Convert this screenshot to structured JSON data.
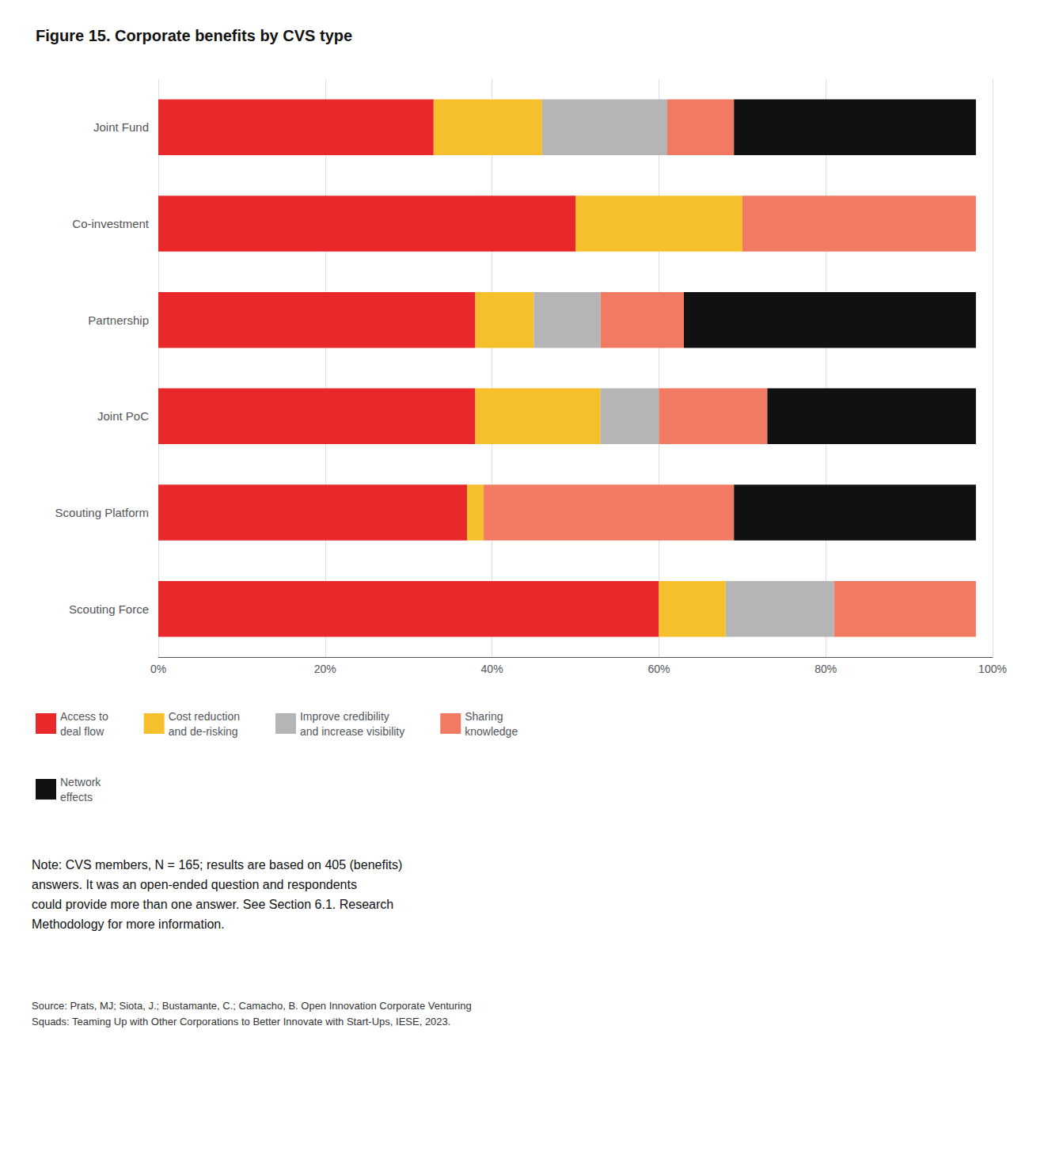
{
  "chart_data": {
    "type": "bar",
    "orientation": "horizontal",
    "stacked": true,
    "title": "Figure 15. Corporate benefits by CVS type",
    "categories": [
      "Joint Fund",
      "Co-investment",
      "Partnership",
      "Joint PoC",
      "Scouting Platform",
      "Scouting Force"
    ],
    "series": [
      {
        "name": "Access to\ndeal flow",
        "color": "#E8282A",
        "values": [
          33,
          50,
          38,
          38,
          37,
          60
        ]
      },
      {
        "name": "Cost reduction\nand de-risking",
        "color": "#F6C02C",
        "values": [
          13,
          20,
          7,
          15,
          2,
          8
        ]
      },
      {
        "name": "Improve credibility\nand increase visibility",
        "color": "#B5B5B5",
        "values": [
          15,
          0,
          8,
          7,
          0,
          13
        ]
      },
      {
        "name": "Sharing\nknowledge",
        "color": "#F07B62",
        "values": [
          8,
          28,
          10,
          13,
          30,
          17
        ]
      },
      {
        "name": "Network\neffects",
        "color": "#111111",
        "values": [
          29,
          0,
          35,
          25,
          29,
          0
        ]
      }
    ],
    "xlim": [
      0,
      100
    ],
    "xticks": [
      {
        "value": 0,
        "label": "0%"
      },
      {
        "value": 20,
        "label": "20%"
      },
      {
        "value": 40,
        "label": "40%"
      },
      {
        "value": 60,
        "label": "60%"
      },
      {
        "value": 80,
        "label": "80%"
      },
      {
        "value": 100,
        "label": "100%"
      }
    ],
    "grid": true,
    "legend": "lower left",
    "annotations": [
      "Note: CVS members, N = 165; results are based on 405 (benefits)\nanswers. It was an open-ended question and respondents\ncould provide more than one answer. See Section 6.1. Research\nMethodology for more information.",
      "Source: Prats, MJ; Siota, J.; Bustamante, C.; Camacho, B. Open Innovation Corporate Venturing\nSquads: Teaming Up with Other Corporations to Better Innovate with Start-Ups, IESE, 2023."
    ]
  }
}
